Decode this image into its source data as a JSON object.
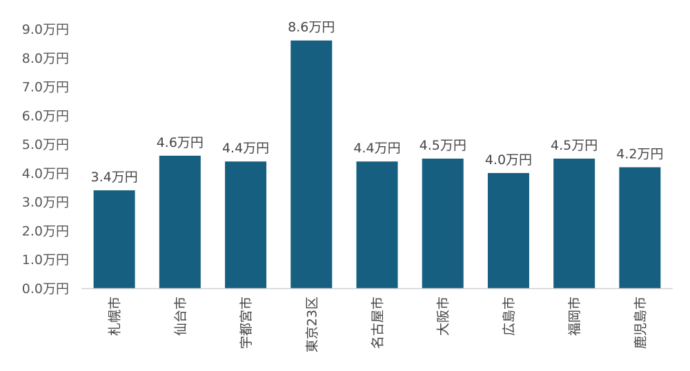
{
  "chart_data": {
    "type": "bar",
    "categories": [
      "札幌市",
      "仙台市",
      "宇都宮市",
      "東京23区",
      "名古屋市",
      "大阪市",
      "広島市",
      "福岡市",
      "鹿児島市"
    ],
    "values": [
      3.4,
      4.6,
      4.4,
      8.6,
      4.4,
      4.5,
      4.0,
      4.5,
      4.2
    ],
    "data_labels": [
      "3.4万円",
      "4.6万円",
      "4.4万円",
      "8.6万円",
      "4.4万円",
      "4.5万円",
      "4.0万円",
      "4.5万円",
      "4.2万円"
    ],
    "y_ticks": [
      "0.0万円",
      "1.0万円",
      "2.0万円",
      "3.0万円",
      "4.0万円",
      "5.0万円",
      "6.0万円",
      "7.0万円",
      "8.0万円",
      "9.0万円"
    ],
    "ylim": [
      0,
      9
    ],
    "grid": false,
    "bar_color": "#165f80"
  }
}
